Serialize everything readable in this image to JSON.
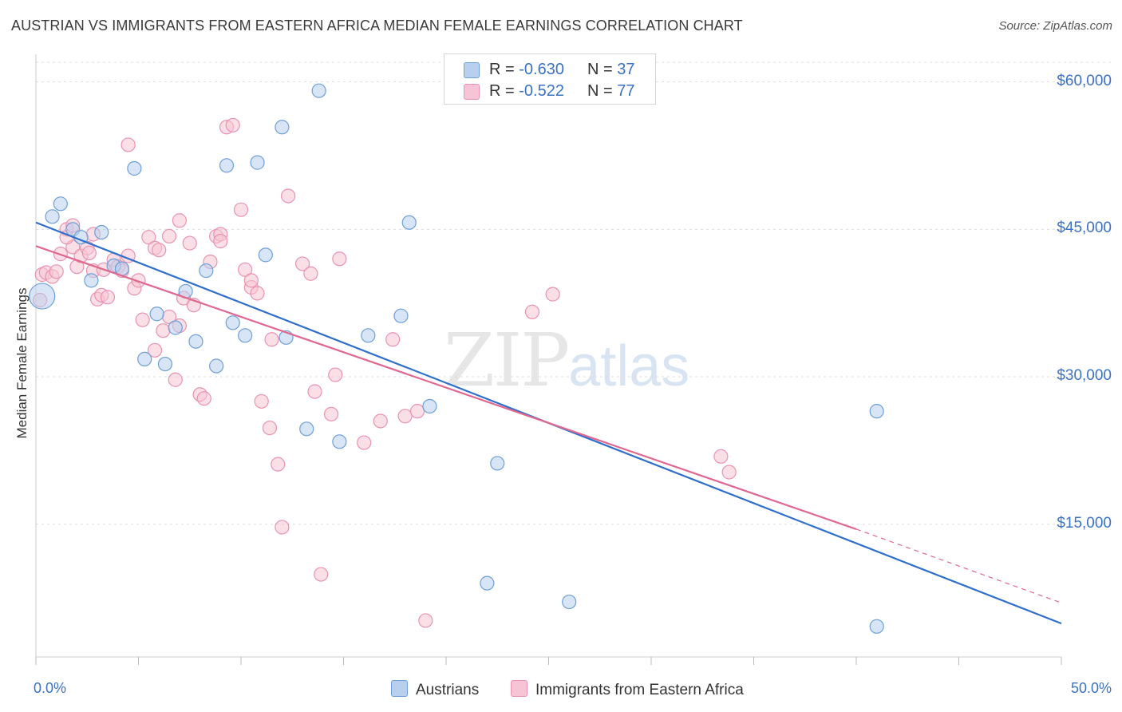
{
  "title": "AUSTRIAN VS IMMIGRANTS FROM EASTERN AFRICA MEDIAN FEMALE EARNINGS CORRELATION CHART",
  "source": "Source: ZipAtlas.com",
  "watermark": {
    "zip": "ZIP",
    "atlas": "atlas"
  },
  "legend_top": [
    {
      "r_label": "R = ",
      "r_value": "-0.630",
      "n_label": "N = ",
      "n_value": "37"
    },
    {
      "r_label": "R = ",
      "r_value": "-0.522",
      "n_label": "N = ",
      "n_value": "77"
    }
  ],
  "colors": {
    "blue_fill": "#b8d0ee",
    "blue_stroke": "#6f9fd8",
    "blue_line": "#2f6fcc",
    "pink_fill": "#f6c4d4",
    "pink_stroke": "#e993b0",
    "pink_line": "#e0688f",
    "tick_text": "#3a72c4",
    "grid": "#dddddd"
  },
  "chart_data": {
    "type": "scatter",
    "title": "AUSTRIAN VS IMMIGRANTS FROM EASTERN AFRICA MEDIAN FEMALE EARNINGS CORRELATION CHART",
    "xlabel": "",
    "ylabel": "Median Female Earnings",
    "xlim": [
      0,
      50
    ],
    "ylim": [
      1500,
      62000
    ],
    "x_tick_labels": [
      "0.0%",
      "50.0%"
    ],
    "y_ticks": [
      15000,
      30000,
      45000,
      60000
    ],
    "y_tick_labels": [
      "$15,000",
      "$30,000",
      "$45,000",
      "$60,000"
    ],
    "grid": true,
    "legend_position": "bottom",
    "series": [
      {
        "name": "Austrians",
        "color": "#6f9fd8",
        "points": [
          [
            0.3,
            38200
          ],
          [
            0.8,
            46300
          ],
          [
            1.2,
            47600
          ],
          [
            1.8,
            45000
          ],
          [
            2.2,
            44200
          ],
          [
            2.7,
            39800
          ],
          [
            3.2,
            44700
          ],
          [
            3.8,
            41300
          ],
          [
            4.2,
            41000
          ],
          [
            4.8,
            51200
          ],
          [
            5.3,
            31800
          ],
          [
            5.9,
            36400
          ],
          [
            6.3,
            31300
          ],
          [
            6.8,
            35000
          ],
          [
            7.3,
            38700
          ],
          [
            7.8,
            33600
          ],
          [
            8.3,
            40800
          ],
          [
            8.8,
            31100
          ],
          [
            9.3,
            51500
          ],
          [
            9.6,
            35500
          ],
          [
            10.2,
            34200
          ],
          [
            10.8,
            51800
          ],
          [
            11.2,
            42400
          ],
          [
            12.2,
            34000
          ],
          [
            12.0,
            55400
          ],
          [
            13.2,
            24700
          ],
          [
            13.8,
            59100
          ],
          [
            14.8,
            23400
          ],
          [
            16.2,
            34200
          ],
          [
            17.8,
            36200
          ],
          [
            18.2,
            45700
          ],
          [
            19.2,
            27000
          ],
          [
            22.0,
            9000
          ],
          [
            22.5,
            21200
          ],
          [
            26.0,
            7100
          ],
          [
            41.0,
            26500
          ],
          [
            41.0,
            4600
          ]
        ]
      },
      {
        "name": "Immigrants from Eastern Africa",
        "color": "#e993b0",
        "points": [
          [
            0.2,
            37800
          ],
          [
            0.3,
            40400
          ],
          [
            0.5,
            40600
          ],
          [
            0.8,
            40200
          ],
          [
            1.0,
            40700
          ],
          [
            1.2,
            42500
          ],
          [
            1.5,
            45000
          ],
          [
            1.8,
            43200
          ],
          [
            2.0,
            41200
          ],
          [
            2.2,
            42300
          ],
          [
            2.5,
            43100
          ],
          [
            2.8,
            40800
          ],
          [
            3.0,
            37900
          ],
          [
            3.2,
            38300
          ],
          [
            3.5,
            38100
          ],
          [
            3.8,
            41900
          ],
          [
            4.0,
            41200
          ],
          [
            4.2,
            40800
          ],
          [
            4.5,
            42300
          ],
          [
            4.8,
            39000
          ],
          [
            5.0,
            39800
          ],
          [
            5.2,
            35800
          ],
          [
            5.5,
            44200
          ],
          [
            5.8,
            43100
          ],
          [
            6.0,
            42900
          ],
          [
            6.2,
            34700
          ],
          [
            6.5,
            36100
          ],
          [
            6.8,
            29700
          ],
          [
            7.0,
            35200
          ],
          [
            7.2,
            38000
          ],
          [
            7.5,
            43600
          ],
          [
            7.7,
            37300
          ],
          [
            8.0,
            28200
          ],
          [
            8.2,
            27800
          ],
          [
            8.5,
            41700
          ],
          [
            8.8,
            44300
          ],
          [
            9.0,
            44500
          ],
          [
            9.3,
            55400
          ],
          [
            9.6,
            55600
          ],
          [
            10.0,
            47000
          ],
          [
            10.2,
            40900
          ],
          [
            10.5,
            39100
          ],
          [
            10.8,
            38500
          ],
          [
            11.0,
            27500
          ],
          [
            11.4,
            24800
          ],
          [
            11.8,
            21100
          ],
          [
            12.0,
            14700
          ],
          [
            12.3,
            48400
          ],
          [
            13.0,
            41500
          ],
          [
            13.4,
            40500
          ],
          [
            13.6,
            28500
          ],
          [
            13.9,
            9900
          ],
          [
            14.4,
            26200
          ],
          [
            14.6,
            30200
          ],
          [
            14.8,
            42000
          ],
          [
            16.0,
            23300
          ],
          [
            16.8,
            25500
          ],
          [
            17.4,
            33800
          ],
          [
            18.0,
            26000
          ],
          [
            18.6,
            26500
          ],
          [
            19.0,
            5200
          ],
          [
            24.2,
            36600
          ],
          [
            25.2,
            38400
          ],
          [
            33.4,
            21900
          ],
          [
            33.8,
            20300
          ],
          [
            4.5,
            53600
          ],
          [
            6.5,
            44300
          ],
          [
            2.8,
            44500
          ],
          [
            1.5,
            44200
          ],
          [
            3.3,
            40900
          ],
          [
            5.8,
            32700
          ],
          [
            7.0,
            45900
          ],
          [
            9.0,
            43800
          ],
          [
            1.8,
            45400
          ],
          [
            2.6,
            42600
          ],
          [
            10.5,
            39800
          ],
          [
            11.5,
            33800
          ]
        ]
      }
    ],
    "trend_lines": [
      {
        "series": "Austrians",
        "x": [
          0,
          50
        ],
        "y": [
          45700,
          4900
        ]
      },
      {
        "series": "Immigrants from Eastern Africa",
        "x": [
          0,
          40
        ],
        "y": [
          43300,
          14500
        ],
        "dashed_extension_x": [
          40,
          50
        ],
        "dashed_extension_y": [
          14500,
          7000
        ]
      }
    ]
  }
}
